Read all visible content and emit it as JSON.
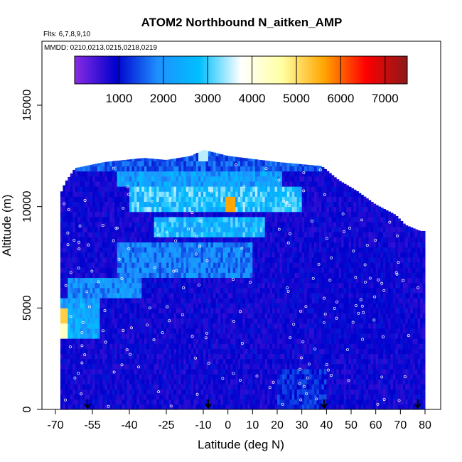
{
  "chart_data": {
    "type": "heatmap",
    "title": "ATOM2 Northbound N_aitken_AMP",
    "flights_label": "Flts: 6,7,8,9,10",
    "mmdd_label": "MMDD: 0210,0213,0215,0218,0219",
    "xlabel": "Latitude (deg N)",
    "ylabel": "Altitude (m)",
    "xlim": [
      -70,
      80
    ],
    "ylim": [
      0,
      17500
    ],
    "xticks": [
      -70,
      -55,
      -40,
      -25,
      -10,
      0,
      10,
      20,
      30,
      40,
      50,
      60,
      70,
      80
    ],
    "xtick_labels": [
      "-70",
      "-55",
      "-40",
      "-25",
      "-10",
      "0",
      "10",
      "20",
      "30",
      "40",
      "50",
      "60",
      "70",
      "80"
    ],
    "yticks": [
      0,
      5000,
      10000,
      15000
    ],
    "ytick_labels": [
      "0",
      "5000",
      "10000",
      "15000"
    ],
    "colorbar": {
      "min": 0,
      "max": 7500,
      "ticks": [
        1000,
        2000,
        3000,
        4000,
        5000,
        6000,
        7000
      ],
      "tick_labels": [
        "1000",
        "2000",
        "3000",
        "4000",
        "5000",
        "6000",
        "7000"
      ],
      "colors": [
        "#8a2be2",
        "#0000cd",
        "#1e90ff",
        "#00bfff",
        "#ffffff",
        "#ffffa0",
        "#ffa500",
        "#ff0000",
        "#8b1a1a"
      ]
    },
    "top_envelope": [
      [
        -68,
        10600
      ],
      [
        -66,
        11200
      ],
      [
        -62,
        11900
      ],
      [
        -50,
        12200
      ],
      [
        -34,
        12400
      ],
      [
        -25,
        12300
      ],
      [
        -15,
        12500
      ],
      [
        -10,
        12800
      ],
      [
        0,
        12500
      ],
      [
        20,
        12200
      ],
      [
        38,
        12000
      ],
      [
        45,
        11300
      ],
      [
        52,
        10800
      ],
      [
        60,
        10100
      ],
      [
        68,
        9600
      ],
      [
        72,
        9100
      ],
      [
        78,
        8800
      ]
    ],
    "layers": [
      {
        "alt_range": [
          11800,
          12900
        ],
        "lat_range": [
          -62,
          38
        ],
        "value": 1500
      },
      {
        "alt_range": [
          11000,
          11800
        ],
        "lat_range": [
          -45,
          22
        ],
        "value": 2200
      },
      {
        "alt_range": [
          9800,
          11000
        ],
        "lat_range": [
          -40,
          30
        ],
        "value": 2800
      },
      {
        "alt_range": [
          10100,
          10500
        ],
        "lat_range": [
          -28,
          28
        ],
        "value": 2500
      },
      {
        "alt_range": [
          8600,
          9500
        ],
        "lat_range": [
          -30,
          15
        ],
        "value": 2600
      },
      {
        "alt_range": [
          6500,
          8200
        ],
        "lat_range": [
          -45,
          10
        ],
        "value": 1800
      },
      {
        "alt_range": [
          5500,
          6500
        ],
        "lat_range": [
          -65,
          -35
        ],
        "value": 2000
      },
      {
        "alt_range": [
          3500,
          5500
        ],
        "lat_range": [
          -68,
          -52
        ],
        "value": 2300
      },
      {
        "alt_range": [
          3000,
          8000
        ],
        "lat_range": [
          35,
          68
        ],
        "value": 800
      },
      {
        "alt_range": [
          0,
          3000
        ],
        "lat_range": [
          -68,
          80
        ],
        "value": 400
      },
      {
        "alt_range": [
          0,
          2000
        ],
        "lat_range": [
          20,
          40
        ],
        "value": 1200
      }
    ],
    "hotspots": [
      {
        "lat": -67,
        "alt": 4600,
        "value": 5200
      },
      {
        "lat": -67,
        "alt": 3900,
        "value": 4300
      },
      {
        "lat": 1,
        "alt": 10100,
        "value": 5600
      },
      {
        "lat": -10,
        "alt": 12700,
        "value": 3500
      }
    ],
    "sample_count": 180,
    "arrow_latitudes": [
      -57,
      -8,
      39,
      77
    ]
  }
}
